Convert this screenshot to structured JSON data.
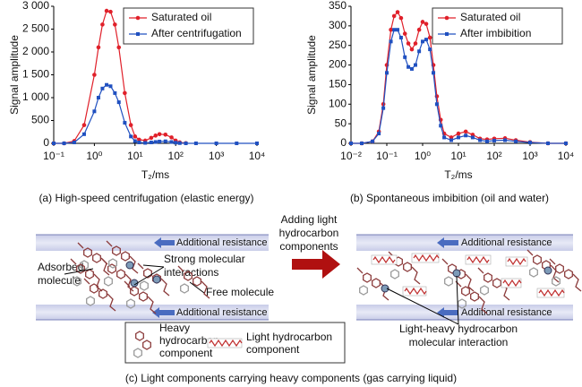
{
  "chart_data": [
    {
      "type": "line",
      "caption": "(a) High-speed centrifugation (elastic energy)",
      "ylabel": "Signal amplitude",
      "xlabel": "T₂/ms",
      "xscale": "log",
      "legend": "upper right",
      "grid": false,
      "xlim": [
        0.1,
        10000
      ],
      "xticks": [
        {
          "value": 0.1,
          "label": "10⁻¹"
        },
        {
          "value": 1,
          "label": "10⁰"
        },
        {
          "value": 10,
          "label": "10¹"
        },
        {
          "value": 100,
          "label": "10²"
        },
        {
          "value": 1000,
          "label": "10³"
        },
        {
          "value": 10000,
          "label": "10⁴"
        }
      ],
      "ylim": [
        0,
        3000
      ],
      "yticks": [
        0,
        500,
        {
          "value": 1000,
          "label": "1 000"
        },
        {
          "value": 1500,
          "label": "1 500"
        },
        {
          "value": 2000,
          "label": "2 000"
        },
        {
          "value": 2500,
          "label": "2 500"
        },
        {
          "value": 3000,
          "label": "3 000"
        }
      ],
      "x": [
        0.1,
        0.18,
        0.32,
        0.56,
        1,
        1.26,
        1.58,
        2,
        2.5,
        3.2,
        4,
        5.6,
        7.9,
        10,
        12.6,
        17.8,
        25,
        32,
        40,
        56,
        79,
        100,
        126,
        178,
        316,
        1000,
        3162,
        10000
      ],
      "series": [
        {
          "name": "Saturated oil",
          "color": "#e0202a",
          "marker": "circle",
          "values": [
            0,
            0,
            50,
            400,
            1500,
            2100,
            2600,
            2900,
            2880,
            2600,
            2100,
            1100,
            400,
            150,
            80,
            60,
            120,
            170,
            200,
            190,
            130,
            60,
            20,
            5,
            null,
            null,
            null,
            null
          ]
        },
        {
          "name": "After centrifugation",
          "color": "#2050c0",
          "marker": "square",
          "values": [
            0,
            0,
            20,
            200,
            700,
            1000,
            1200,
            1280,
            1250,
            1100,
            900,
            450,
            150,
            50,
            20,
            10,
            20,
            30,
            40,
            45,
            30,
            15,
            5,
            0,
            0,
            0,
            0,
            0
          ]
        }
      ]
    },
    {
      "type": "line",
      "caption": "(b) Spontaneous imbibition (oil and water)",
      "ylabel": "Signal amplitude",
      "xlabel": "T₂/ms",
      "xscale": "log",
      "legend": "upper right",
      "grid": false,
      "xlim": [
        0.01,
        10000
      ],
      "xticks": [
        {
          "value": 0.01,
          "label": "10⁻²"
        },
        {
          "value": 0.1,
          "label": "10⁻¹"
        },
        {
          "value": 1,
          "label": "10⁰"
        },
        {
          "value": 10,
          "label": "10¹"
        },
        {
          "value": 100,
          "label": "10²"
        },
        {
          "value": 1000,
          "label": "10³"
        },
        {
          "value": 10000,
          "label": "10⁴"
        }
      ],
      "ylim": [
        0,
        350
      ],
      "yticks": [
        0,
        50,
        100,
        150,
        200,
        250,
        300,
        350
      ],
      "x": [
        0.01,
        0.02,
        0.04,
        0.06,
        0.08,
        0.1,
        0.13,
        0.16,
        0.2,
        0.25,
        0.32,
        0.4,
        0.5,
        0.63,
        0.8,
        1,
        1.26,
        1.6,
        2,
        2.5,
        3.2,
        4,
        6.3,
        10,
        16,
        25,
        40,
        63,
        100,
        200,
        400,
        1000,
        3162,
        10000
      ],
      "series": [
        {
          "name": "Saturated oil",
          "color": "#e0202a",
          "marker": "circle",
          "values": [
            0,
            0,
            5,
            30,
            100,
            200,
            290,
            325,
            335,
            320,
            280,
            255,
            240,
            255,
            290,
            310,
            305,
            270,
            200,
            120,
            60,
            25,
            15,
            25,
            30,
            22,
            12,
            10,
            12,
            13,
            8,
            3,
            0,
            0
          ]
        },
        {
          "name": "After imbibition",
          "color": "#2050c0",
          "marker": "square",
          "values": [
            0,
            0,
            5,
            25,
            90,
            180,
            260,
            290,
            290,
            270,
            220,
            195,
            190,
            200,
            235,
            260,
            265,
            240,
            180,
            100,
            45,
            15,
            8,
            15,
            20,
            15,
            8,
            5,
            7,
            8,
            5,
            2,
            0,
            0
          ]
        }
      ]
    }
  ],
  "diagram": {
    "resistance": [
      "Additional resistance",
      "Additional resistance",
      "Additional resistance",
      "Additional resistance"
    ],
    "adsorbed": [
      "Adsorbed",
      "molecule"
    ],
    "strong": [
      "Strong molecular",
      "interactions"
    ],
    "free": "Free molecule",
    "adding": [
      "Adding light",
      "hydrocarbon",
      "components"
    ],
    "light_heavy": [
      "Light-heavy hydrocarbon",
      "molecular interaction"
    ],
    "legend_heavy": [
      "Heavy",
      "hydrocarbon",
      "component"
    ],
    "legend_light": [
      "Light hydrocarbon",
      "component"
    ],
    "caption": "(c) Light components carrying heavy components (gas carrying liquid)"
  }
}
